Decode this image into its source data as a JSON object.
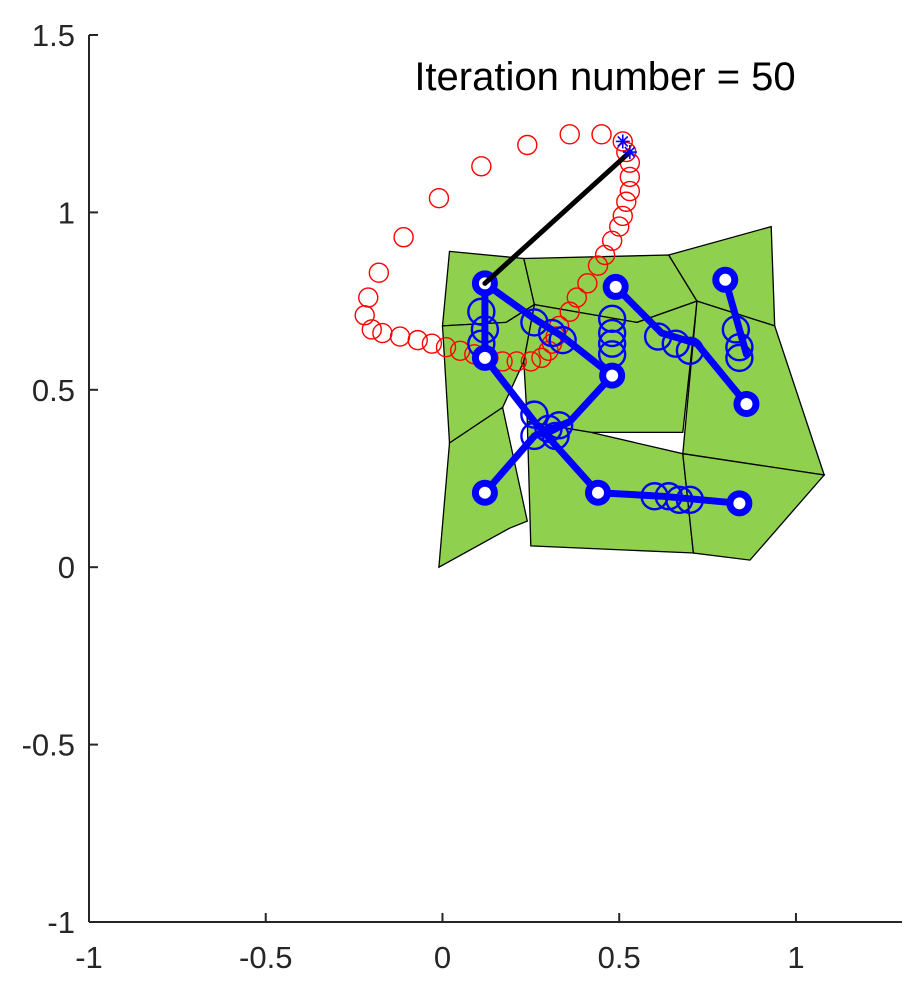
{
  "chart_data": {
    "type": "scatter",
    "title": "Iteration number =  50",
    "xlabel": "",
    "ylabel": "",
    "xlim": [
      -1,
      1.3
    ],
    "ylim": [
      -1,
      1.5
    ],
    "x_ticks": [
      "-1",
      "-0.5",
      "0",
      "0.5",
      "1"
    ],
    "x_tick_values": [
      -1,
      -0.5,
      0,
      0.5,
      1
    ],
    "y_ticks": [
      "-1",
      "-0.5",
      "0",
      "0.5",
      "1",
      "1.5"
    ],
    "y_tick_values": [
      -1,
      -0.5,
      0,
      0.5,
      1,
      1.5
    ],
    "grid": false,
    "colors": {
      "axis": "#262626",
      "patch_fill": "#8fd14f",
      "patch_edge": "#000000",
      "skeleton": "#0000ff",
      "trajectory": "#ff0000",
      "link": "#000000",
      "target_marker": "#0000ff"
    },
    "patches": [
      [
        [
          0.02,
          0.89
        ],
        [
          0.23,
          0.87
        ],
        [
          0.26,
          0.74
        ],
        [
          0.18,
          0.69
        ],
        [
          0.0,
          0.68
        ]
      ],
      [
        [
          0.23,
          0.87
        ],
        [
          0.64,
          0.88
        ],
        [
          0.72,
          0.75
        ],
        [
          0.55,
          0.69
        ],
        [
          0.26,
          0.74
        ]
      ],
      [
        [
          0.64,
          0.88
        ],
        [
          0.93,
          0.96
        ],
        [
          0.94,
          0.68
        ],
        [
          0.72,
          0.75
        ]
      ],
      [
        [
          0.0,
          0.68
        ],
        [
          0.18,
          0.69
        ],
        [
          0.26,
          0.74
        ],
        [
          0.23,
          0.58
        ],
        [
          0.17,
          0.45
        ],
        [
          0.02,
          0.35
        ]
      ],
      [
        [
          0.23,
          0.58
        ],
        [
          0.26,
          0.74
        ],
        [
          0.55,
          0.69
        ],
        [
          0.72,
          0.75
        ],
        [
          0.68,
          0.38
        ],
        [
          0.42,
          0.38
        ],
        [
          0.24,
          0.41
        ]
      ],
      [
        [
          0.72,
          0.75
        ],
        [
          0.94,
          0.68
        ],
        [
          1.08,
          0.26
        ],
        [
          0.68,
          0.32
        ]
      ],
      [
        [
          0.02,
          0.35
        ],
        [
          0.17,
          0.45
        ],
        [
          0.24,
          0.13
        ],
        [
          0.19,
          0.11
        ],
        [
          -0.01,
          0.0
        ]
      ],
      [
        [
          0.24,
          0.41
        ],
        [
          0.42,
          0.38
        ],
        [
          0.68,
          0.32
        ],
        [
          0.71,
          0.04
        ],
        [
          0.25,
          0.06
        ]
      ],
      [
        [
          0.68,
          0.32
        ],
        [
          1.08,
          0.26
        ],
        [
          0.87,
          0.02
        ],
        [
          0.71,
          0.04
        ]
      ]
    ],
    "skeleton_segments": [
      [
        [
          0.12,
          0.8
        ],
        [
          0.26,
          0.7
        ],
        [
          0.34,
          0.65
        ],
        [
          0.48,
          0.54
        ],
        [
          0.36,
          0.41
        ],
        [
          0.26,
          0.37
        ],
        [
          0.12,
          0.21
        ]
      ],
      [
        [
          0.12,
          0.8
        ],
        [
          0.12,
          0.59
        ],
        [
          0.26,
          0.41
        ],
        [
          0.44,
          0.21
        ],
        [
          0.62,
          0.2
        ],
        [
          0.84,
          0.18
        ]
      ],
      [
        [
          0.49,
          0.79
        ],
        [
          0.62,
          0.66
        ],
        [
          0.72,
          0.63
        ],
        [
          0.86,
          0.46
        ]
      ],
      [
        [
          0.8,
          0.81
        ],
        [
          0.86,
          0.6
        ]
      ],
      [
        [
          0.36,
          0.41
        ],
        [
          0.3,
          0.38
        ]
      ]
    ],
    "joints": [
      [
        0.12,
        0.8
      ],
      [
        0.12,
        0.59
      ],
      [
        0.12,
        0.21
      ],
      [
        0.48,
        0.54
      ],
      [
        0.49,
        0.79
      ],
      [
        0.44,
        0.21
      ],
      [
        0.8,
        0.81
      ],
      [
        0.86,
        0.46
      ],
      [
        0.84,
        0.18
      ]
    ],
    "skeleton_rings": [
      [
        0.11,
        0.72
      ],
      [
        0.12,
        0.67
      ],
      [
        0.11,
        0.63
      ],
      [
        0.26,
        0.69
      ],
      [
        0.31,
        0.66
      ],
      [
        0.34,
        0.64
      ],
      [
        0.48,
        0.7
      ],
      [
        0.48,
        0.66
      ],
      [
        0.48,
        0.63
      ],
      [
        0.48,
        0.6
      ],
      [
        0.26,
        0.43
      ],
      [
        0.26,
        0.37
      ],
      [
        0.3,
        0.39
      ],
      [
        0.32,
        0.37
      ],
      [
        0.33,
        0.4
      ],
      [
        0.61,
        0.65
      ],
      [
        0.66,
        0.63
      ],
      [
        0.7,
        0.61
      ],
      [
        0.83,
        0.67
      ],
      [
        0.84,
        0.62
      ],
      [
        0.84,
        0.59
      ],
      [
        0.6,
        0.2
      ],
      [
        0.64,
        0.2
      ],
      [
        0.67,
        0.19
      ],
      [
        0.7,
        0.19
      ]
    ],
    "trajectory": [
      [
        0.45,
        1.22
      ],
      [
        0.36,
        1.22
      ],
      [
        0.24,
        1.19
      ],
      [
        0.11,
        1.13
      ],
      [
        -0.01,
        1.04
      ],
      [
        -0.11,
        0.93
      ],
      [
        -0.18,
        0.83
      ],
      [
        -0.21,
        0.76
      ],
      [
        -0.22,
        0.71
      ],
      [
        -0.2,
        0.67
      ],
      [
        -0.17,
        0.66
      ],
      [
        -0.12,
        0.65
      ],
      [
        -0.07,
        0.64
      ],
      [
        -0.03,
        0.63
      ],
      [
        0.01,
        0.62
      ],
      [
        0.05,
        0.61
      ],
      [
        0.09,
        0.6
      ],
      [
        0.13,
        0.59
      ],
      [
        0.17,
        0.58
      ],
      [
        0.21,
        0.58
      ],
      [
        0.25,
        0.58
      ],
      [
        0.28,
        0.59
      ],
      [
        0.3,
        0.61
      ],
      [
        0.31,
        0.63
      ],
      [
        0.32,
        0.65
      ],
      [
        0.33,
        0.68
      ],
      [
        0.36,
        0.72
      ],
      [
        0.38,
        0.76
      ],
      [
        0.41,
        0.8
      ],
      [
        0.44,
        0.85
      ],
      [
        0.46,
        0.88
      ],
      [
        0.48,
        0.92
      ],
      [
        0.5,
        0.96
      ],
      [
        0.51,
        0.99
      ],
      [
        0.52,
        1.03
      ],
      [
        0.53,
        1.06
      ],
      [
        0.53,
        1.1
      ],
      [
        0.53,
        1.14
      ],
      [
        0.52,
        1.17
      ],
      [
        0.51,
        1.2
      ]
    ],
    "link_line": [
      [
        0.12,
        0.8
      ],
      [
        0.53,
        1.17
      ]
    ],
    "target_markers": [
      [
        0.51,
        1.2
      ],
      [
        0.53,
        1.17
      ]
    ]
  }
}
